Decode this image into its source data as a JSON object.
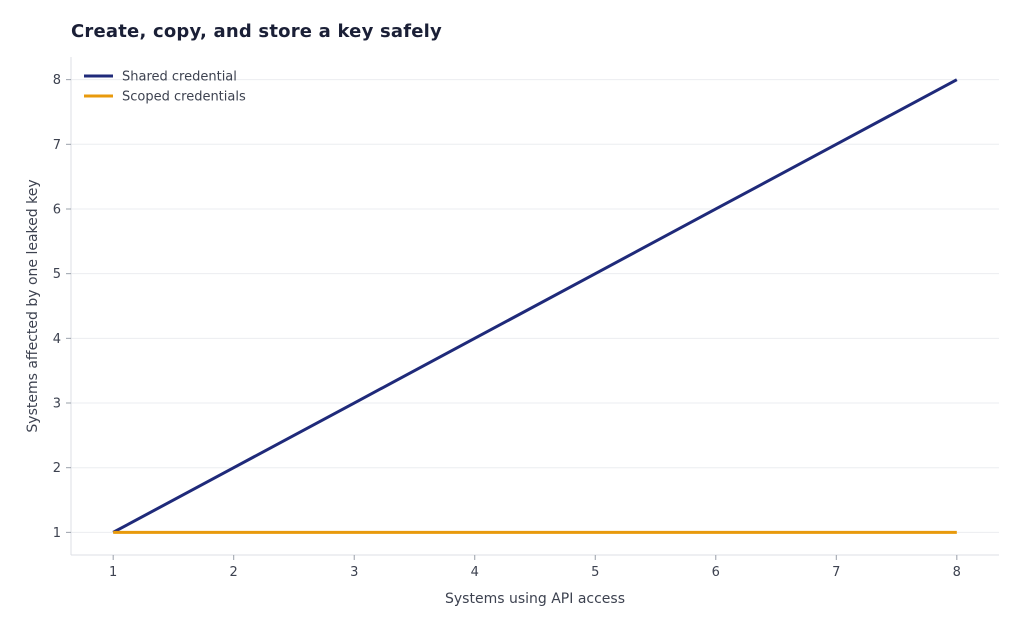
{
  "chart_data": {
    "type": "line",
    "title": "Create, copy, and store a key safely",
    "xlabel": "Systems using API access",
    "ylabel": "Systems affected by one leaked key",
    "x": [
      1,
      2,
      3,
      4,
      5,
      6,
      7,
      8
    ],
    "xlim": [
      0.65,
      8.35
    ],
    "ylim": [
      0.65,
      8.35
    ],
    "xticks": [
      1,
      2,
      3,
      4,
      5,
      6,
      7,
      8
    ],
    "yticks": [
      1,
      2,
      3,
      4,
      5,
      6,
      7,
      8
    ],
    "grid": "horizontal",
    "legend_position": "top-left",
    "series": [
      {
        "name": "Shared credential",
        "color": "#1f2a7a",
        "values": [
          1,
          2,
          3,
          4,
          5,
          6,
          7,
          8
        ]
      },
      {
        "name": "Scoped credentials",
        "color": "#e89a0c",
        "values": [
          1,
          1,
          1,
          1,
          1,
          1,
          1,
          1
        ]
      }
    ]
  }
}
